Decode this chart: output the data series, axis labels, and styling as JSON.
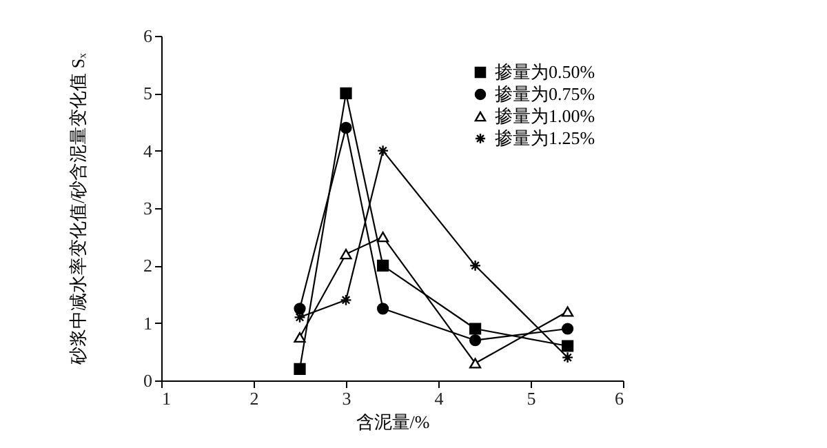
{
  "chart_data": {
    "type": "line",
    "xlabel": "含泥量/%",
    "ylabel": "砂浆中减水率变化值/砂含泥量变化值 Sₓ",
    "x": [
      2.5,
      3.0,
      3.4,
      4.4,
      5.4
    ],
    "xlim": [
      1,
      6
    ],
    "xticks": [
      1,
      2,
      3,
      4,
      5,
      6
    ],
    "ylim": [
      0,
      6
    ],
    "yticks": [
      0,
      1,
      2,
      3,
      4,
      5,
      6
    ],
    "grid": false,
    "legend": "top right",
    "line_style": "solid",
    "series": [
      {
        "name": "掺量为0.50%",
        "color": "#000000",
        "marker": "square",
        "values": [
          0.2,
          5.0,
          2.0,
          0.9,
          0.6
        ]
      },
      {
        "name": "掺量为0.75%",
        "color": "#000000",
        "marker": "circle",
        "values": [
          1.25,
          4.4,
          1.25,
          0.7,
          0.9
        ]
      },
      {
        "name": "掺量为1.00%",
        "color": "#000000",
        "marker": "triangle",
        "values": [
          0.75,
          2.2,
          2.5,
          0.3,
          1.2
        ]
      },
      {
        "name": "掺量为1.25%",
        "color": "#000000",
        "marker": "cross",
        "values": [
          1.1,
          1.4,
          4.0,
          2.0,
          0.4
        ]
      }
    ]
  }
}
